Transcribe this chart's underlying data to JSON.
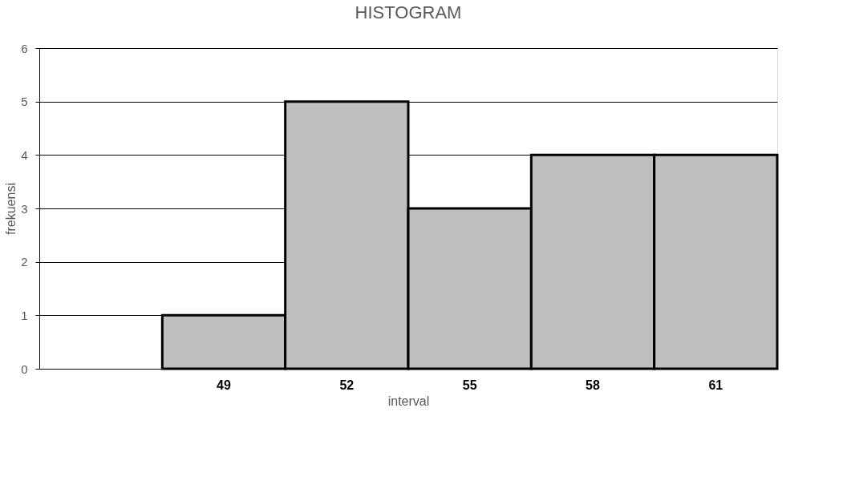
{
  "chart_data": {
    "type": "bar",
    "title": "HISTOGRAM",
    "xlabel": "interval",
    "ylabel": "frekuensi",
    "categories": [
      null,
      "49",
      "52",
      "55",
      "58",
      "61"
    ],
    "values": [
      null,
      1,
      5,
      3,
      4,
      4
    ],
    "color": "#bfbfbf",
    "ylim": [
      0,
      6
    ],
    "yticks": [
      0,
      1,
      2,
      3,
      4,
      5,
      6
    ],
    "grid": "y"
  }
}
